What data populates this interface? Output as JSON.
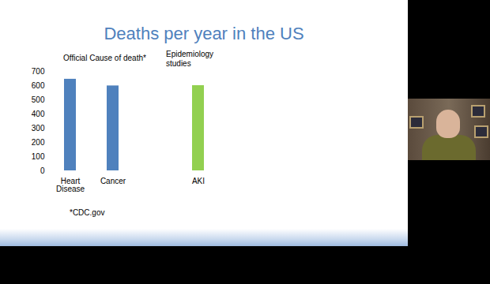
{
  "chart_data": {
    "type": "bar",
    "title": "Deaths per year in the US",
    "categories": [
      "Heart Disease",
      "Cancer",
      null,
      "AKI"
    ],
    "values": [
      645,
      598,
      null,
      600
    ],
    "colors": [
      "#4f81bd",
      "#4f81bd",
      null,
      "#92d050"
    ],
    "ylim": [
      0,
      700
    ],
    "yticks": [
      0,
      100,
      200,
      300,
      400,
      500,
      600,
      700
    ],
    "grid": false,
    "annotations": [
      "Official Cause of death*",
      "Epidemiology studies",
      "*CDC.gov"
    ]
  }
}
